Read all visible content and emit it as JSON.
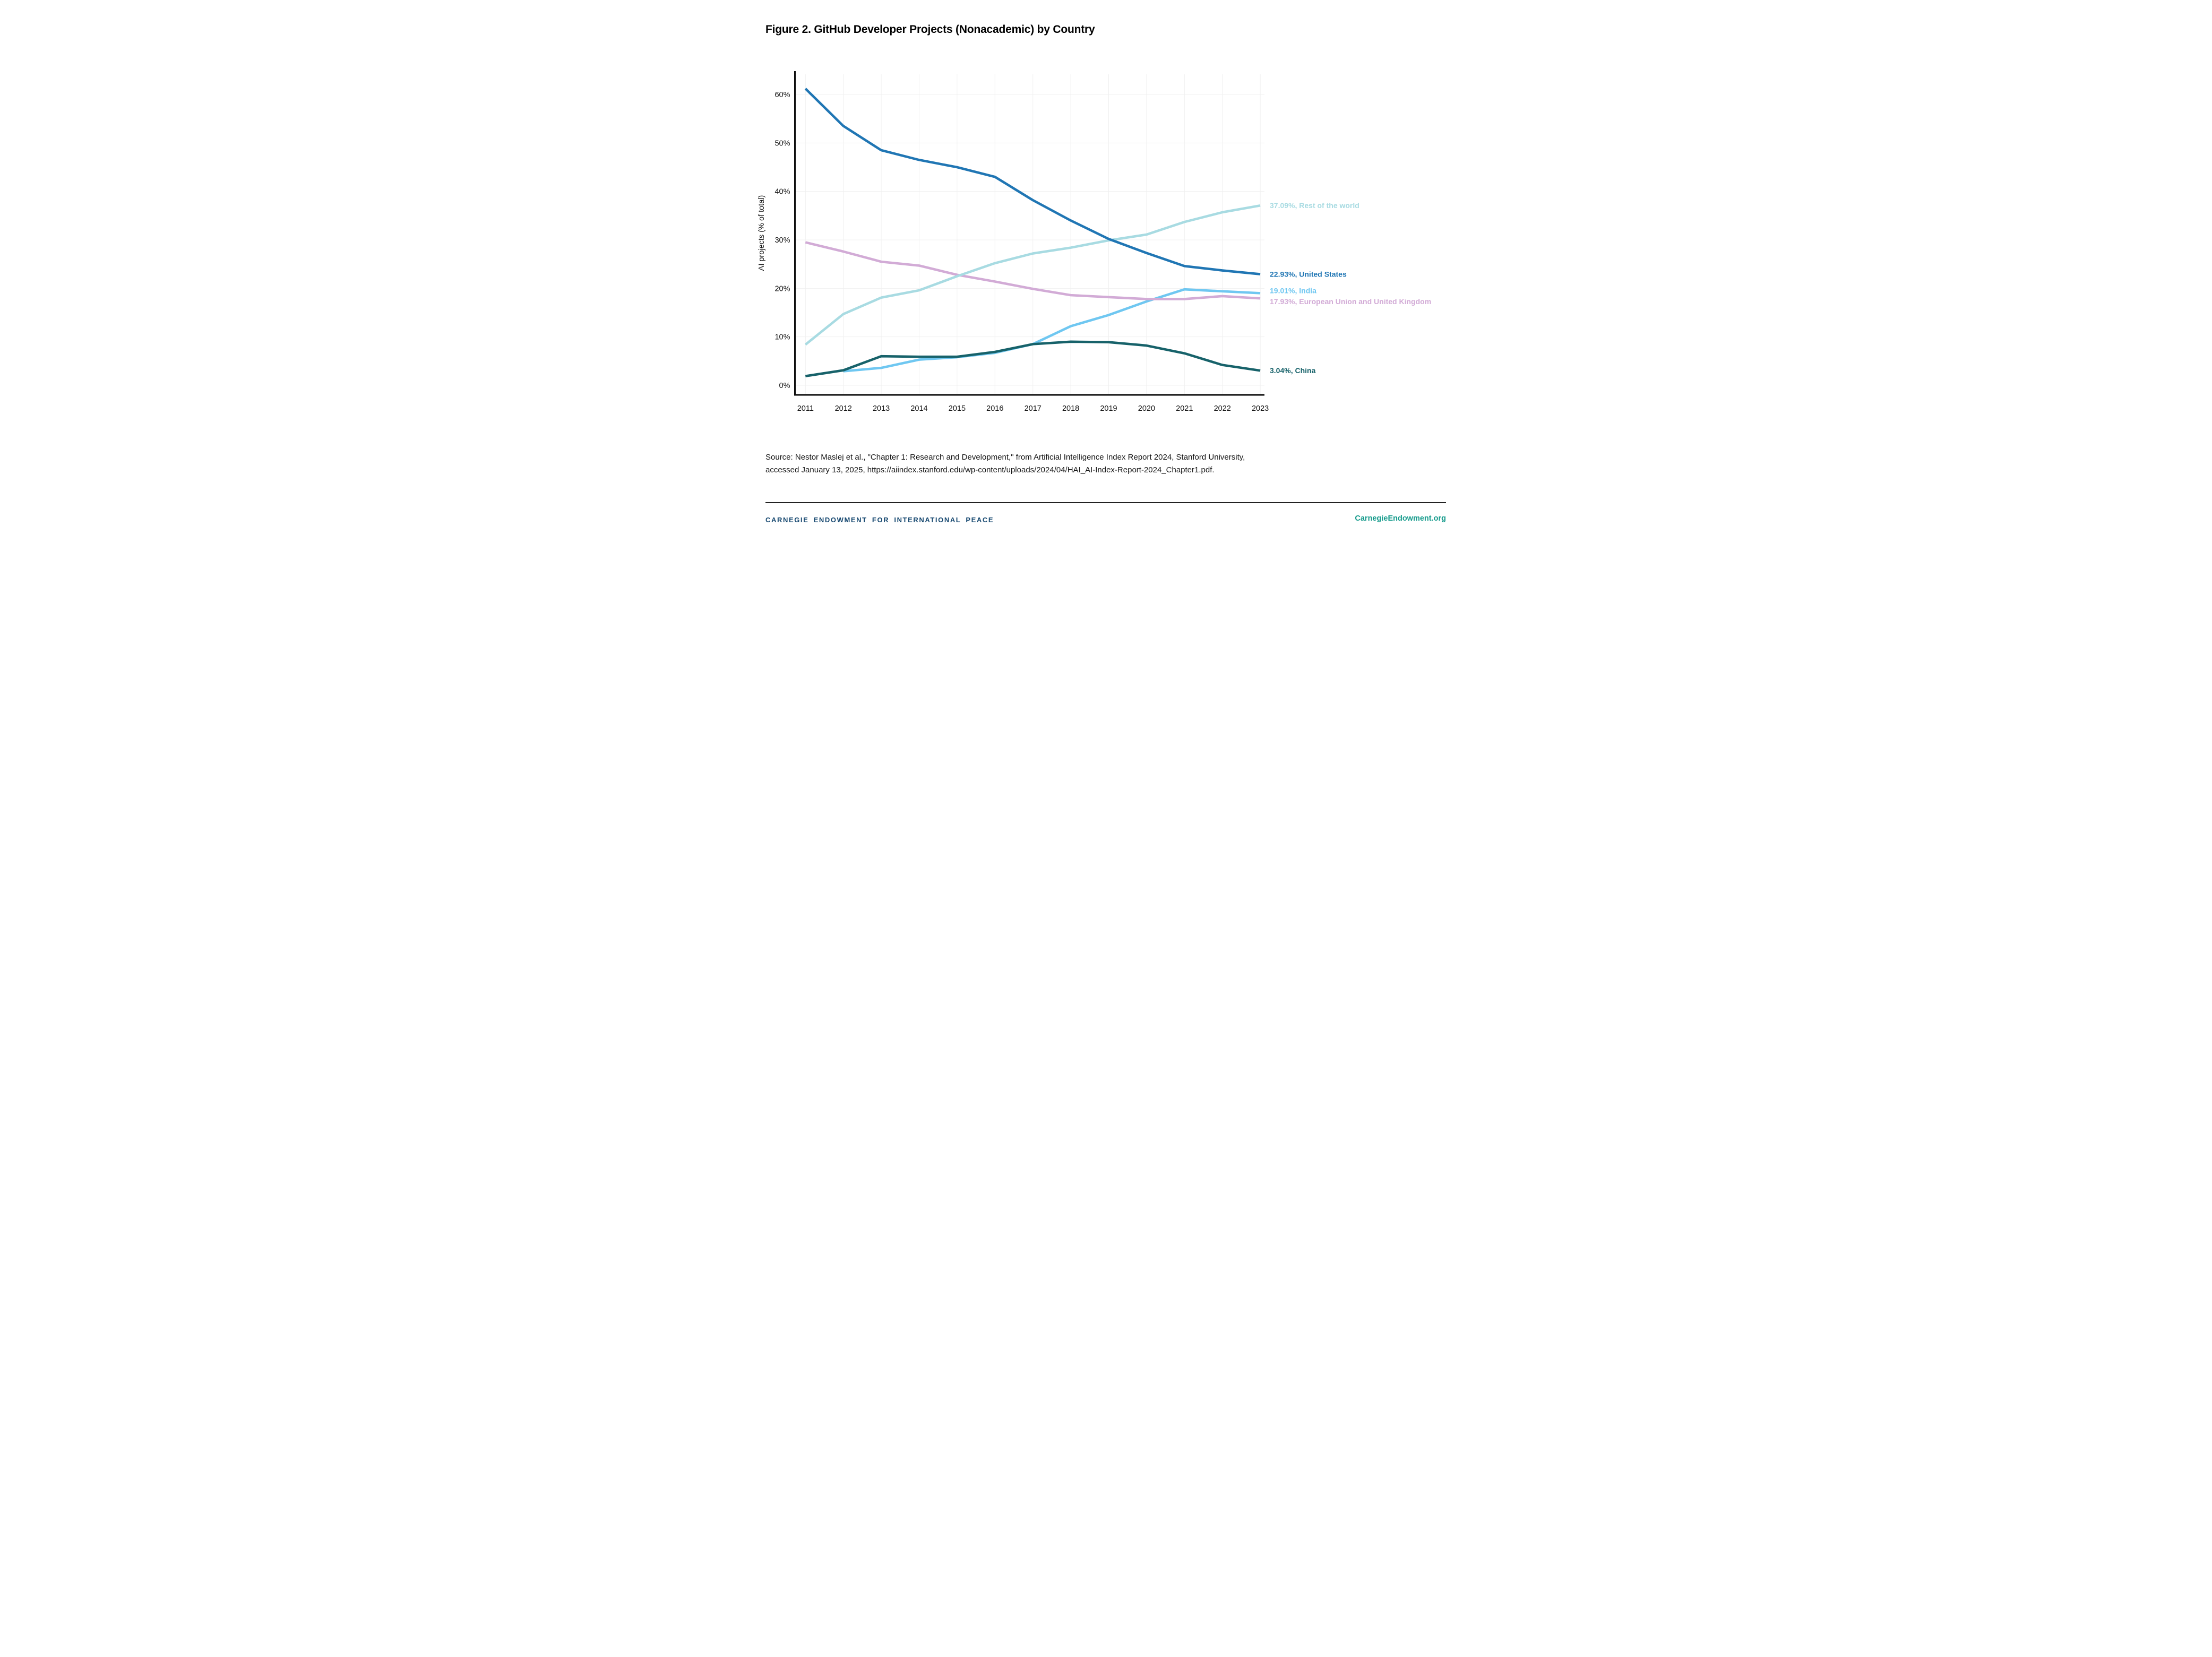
{
  "title": "Figure 2. GitHub Developer Projects (Nonacademic) by Country",
  "chart_data": {
    "type": "line",
    "x": [
      2011,
      2012,
      2013,
      2014,
      2015,
      2016,
      2017,
      2018,
      2019,
      2020,
      2021,
      2022,
      2023
    ],
    "xlabel": "",
    "ylabel": "AI projects (% of total)",
    "ylim": [
      0,
      65
    ],
    "yticks": [
      0,
      10,
      20,
      30,
      40,
      50,
      60
    ],
    "ytick_suffix": "%",
    "grid": true,
    "legend_position": "end-of-line-labels",
    "series": [
      {
        "name": "India",
        "color": "#6fc7f1",
        "values": [
          null,
          2.9,
          3.6,
          5.3,
          5.8,
          6.7,
          8.5,
          12.2,
          14.5,
          17.3,
          19.8,
          19.4,
          19.01
        ],
        "end_label": "19.01%, India",
        "label_offset": -5
      },
      {
        "name": "China",
        "color": "#17626a",
        "values": [
          1.9,
          3.1,
          6.0,
          5.9,
          5.9,
          6.9,
          8.5,
          9.0,
          8.9,
          8.2,
          6.6,
          4.2,
          3.04
        ],
        "end_label": "3.04%, China",
        "label_offset": 0
      },
      {
        "name": "European Union and United Kingdom",
        "color": "#d2abd6",
        "values": [
          29.5,
          27.6,
          25.5,
          24.7,
          22.8,
          21.4,
          19.9,
          18.6,
          18.2,
          17.8,
          17.8,
          18.4,
          17.93
        ],
        "end_label": "17.93%, European Union and United Kingdom",
        "label_offset": 6
      },
      {
        "name": "Rest of the world",
        "color": "#a8dbe2",
        "values": [
          8.4,
          14.7,
          18.1,
          19.6,
          22.5,
          25.2,
          27.2,
          28.4,
          29.9,
          31.1,
          33.7,
          35.7,
          37.09
        ],
        "end_label": "37.09%, Rest of the world",
        "label_offset": 0
      },
      {
        "name": "United States",
        "color": "#2076b4",
        "values": [
          61.2,
          53.5,
          48.5,
          46.5,
          45.0,
          43.0,
          38.2,
          34.0,
          30.2,
          27.3,
          24.6,
          23.7,
          22.93
        ],
        "end_label": "22.93%, United States",
        "label_offset": 0
      }
    ],
    "colors": {
      "axis": "#0d0d0d",
      "grid": "#f0f0f0",
      "tick_text": "#111111"
    }
  },
  "source": {
    "line1": "Source: Nestor Maslej et al., \"Chapter 1: Research and Development,\" from Artificial Intelligence Index Report 2024, Stanford University,",
    "line2": "accessed January 13, 2025, https://aiindex.stanford.edu/wp-content/uploads/2024/04/HAI_AI-Index-Report-2024_Chapter1.pdf."
  },
  "footer": {
    "left": "CARNEGIE ENDOWMENT FOR INTERNATIONAL PEACE",
    "left_color": "#15476f",
    "right": "CarnegieEndowment.org",
    "right_color": "#169b8c"
  }
}
